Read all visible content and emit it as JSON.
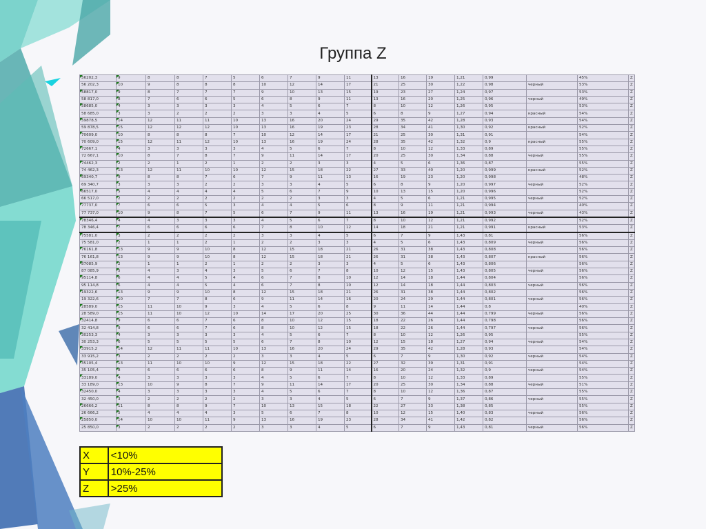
{
  "title": "Группа Z",
  "table": {
    "rows": [
      [
        "56202,3",
        "9",
        "8",
        "8",
        "7",
        "5",
        "6",
        "7",
        "9",
        "11",
        "13",
        "16",
        "19",
        "1,21",
        "0,99",
        "",
        "45%",
        "Z"
      ],
      [
        "56 202,3",
        "10",
        "9",
        "8",
        "8",
        "8",
        "10",
        "12",
        "14",
        "17",
        "21",
        "25",
        "30",
        "1,22",
        "0,98",
        "черный",
        "53%",
        "Z"
      ],
      [
        "58817,0",
        "9",
        "8",
        "7",
        "7",
        "7",
        "9",
        "10",
        "13",
        "15",
        "19",
        "23",
        "27",
        "1,24",
        "0,97",
        "",
        "53%",
        "Z"
      ],
      [
        "58 817,0",
        "8",
        "7",
        "6",
        "6",
        "5",
        "6",
        "8",
        "9",
        "11",
        "13",
        "16",
        "20",
        "1,25",
        "0,96",
        "черный",
        "49%",
        "Z"
      ],
      [
        "58685,0",
        "4",
        "3",
        "3",
        "3",
        "3",
        "4",
        "5",
        "6",
        "7",
        "8",
        "10",
        "12",
        "1,26",
        "0,95",
        "",
        "53%",
        "Z"
      ],
      [
        "58 685,0",
        "3",
        "3",
        "2",
        "2",
        "2",
        "3",
        "3",
        "4",
        "5",
        "6",
        "8",
        "9",
        "1,27",
        "0,94",
        "красный",
        "54%",
        "Z"
      ],
      [
        "59878,5",
        "14",
        "12",
        "11",
        "11",
        "10",
        "13",
        "16",
        "20",
        "24",
        "29",
        "35",
        "42",
        "1,28",
        "0,93",
        "",
        "54%",
        "Z"
      ],
      [
        "59 878,5",
        "15",
        "12",
        "12",
        "12",
        "10",
        "13",
        "16",
        "19",
        "23",
        "28",
        "34",
        "41",
        "1,30",
        "0,92",
        "красный",
        "52%",
        "Z"
      ],
      [
        "70609,0",
        "10",
        "8",
        "8",
        "8",
        "7",
        "10",
        "12",
        "14",
        "17",
        "21",
        "25",
        "30",
        "1,31",
        "0,91",
        "",
        "54%",
        "Z"
      ],
      [
        "70 609,0",
        "15",
        "12",
        "11",
        "12",
        "10",
        "13",
        "16",
        "19",
        "24",
        "28",
        "35",
        "42",
        "1,32",
        "0,9",
        "красный",
        "55%",
        "Z"
      ],
      [
        "72667,1",
        "4",
        "3",
        "3",
        "3",
        "3",
        "4",
        "5",
        "6",
        "7",
        "8",
        "10",
        "12",
        "1,33",
        "0,89",
        "",
        "55%",
        "Z"
      ],
      [
        "72 667,1",
        "10",
        "8",
        "7",
        "8",
        "7",
        "9",
        "11",
        "14",
        "17",
        "20",
        "25",
        "30",
        "1,34",
        "0,88",
        "черный",
        "55%",
        "Z"
      ],
      [
        "74462,3",
        "2",
        "2",
        "1",
        "2",
        "1",
        "2",
        "2",
        "3",
        "3",
        "4",
        "5",
        "6",
        "1,36",
        "0,87",
        "",
        "55%",
        "Z"
      ],
      [
        "74 462,3",
        "13",
        "12",
        "11",
        "10",
        "10",
        "12",
        "15",
        "18",
        "22",
        "27",
        "33",
        "40",
        "1,20",
        "0,999",
        "красный",
        "52%",
        "Z"
      ],
      [
        "69340,7",
        "9",
        "8",
        "8",
        "7",
        "6",
        "7",
        "9",
        "11",
        "13",
        "16",
        "19",
        "23",
        "1,20",
        "0,998",
        "",
        "48%",
        "Z"
      ],
      [
        "69 340,7",
        "3",
        "3",
        "3",
        "2",
        "2",
        "3",
        "3",
        "4",
        "5",
        "6",
        "8",
        "9",
        "1,20",
        "0,997",
        "черный",
        "52%",
        "Z"
      ],
      [
        "66517,0",
        "5",
        "4",
        "4",
        "4",
        "4",
        "5",
        "6",
        "7",
        "9",
        "10",
        "13",
        "15",
        "1,20",
        "0,996",
        "",
        "52%",
        "Z"
      ],
      [
        "66 517,0",
        "2",
        "2",
        "2",
        "2",
        "2",
        "2",
        "2",
        "3",
        "3",
        "4",
        "5",
        "6",
        "1,21",
        "0,995",
        "черный",
        "52%",
        "Z"
      ],
      [
        "77737,0",
        "7",
        "6",
        "6",
        "5",
        "3",
        "4",
        "4",
        "5",
        "6",
        "8",
        "9",
        "11",
        "1,21",
        "0,994",
        "",
        "40%",
        "Z"
      ],
      [
        "77 737,0",
        "10",
        "9",
        "8",
        "7",
        "5",
        "6",
        "7",
        "9",
        "11",
        "13",
        "16",
        "19",
        "1,21",
        "0,993",
        "черный",
        "43%",
        "Z"
      ],
      [
        "78346,4",
        "4",
        "4",
        "3",
        "3",
        "3",
        "4",
        "5",
        "6",
        "7",
        "8",
        "10",
        "12",
        "1,21",
        "0,992",
        "",
        "52%",
        "Z"
      ],
      [
        "78 346,4",
        "7",
        "6",
        "6",
        "6",
        "6",
        "7",
        "8",
        "10",
        "12",
        "14",
        "18",
        "21",
        "1,21",
        "0,991",
        "красный",
        "53%",
        "Z"
      ],
      [
        "75581,0",
        "3",
        "2",
        "2",
        "2",
        "2",
        "3",
        "3",
        "4",
        "5",
        "6",
        "7",
        "9",
        "1,43",
        "0,81",
        "",
        "56%",
        "Z"
      ],
      [
        "75 581,0",
        "2",
        "1",
        "1",
        "2",
        "1",
        "2",
        "2",
        "3",
        "3",
        "4",
        "5",
        "6",
        "1,43",
        "0,809",
        "черный",
        "56%",
        "Z"
      ],
      [
        "76161,8",
        "13",
        "9",
        "9",
        "10",
        "8",
        "12",
        "15",
        "18",
        "21",
        "26",
        "31",
        "38",
        "1,43",
        "0,808",
        "",
        "56%",
        "Z"
      ],
      [
        "76 161,8",
        "13",
        "9",
        "9",
        "10",
        "8",
        "12",
        "15",
        "18",
        "21",
        "26",
        "31",
        "38",
        "1,43",
        "0,807",
        "красный",
        "56%",
        "Z"
      ],
      [
        "87085,9",
        "2",
        "1",
        "1",
        "2",
        "1",
        "2",
        "2",
        "3",
        "3",
        "4",
        "5",
        "6",
        "1,43",
        "0,806",
        "",
        "56%",
        "Z"
      ],
      [
        "87 085,9",
        "5",
        "4",
        "3",
        "4",
        "3",
        "5",
        "6",
        "7",
        "8",
        "10",
        "12",
        "15",
        "1,43",
        "0,805",
        "черный",
        "56%",
        "Z"
      ],
      [
        "95114,8",
        "6",
        "4",
        "4",
        "5",
        "4",
        "6",
        "7",
        "8",
        "10",
        "12",
        "14",
        "18",
        "1,44",
        "0,804",
        "",
        "56%",
        "Z"
      ],
      [
        "95 114,8",
        "6",
        "4",
        "4",
        "5",
        "4",
        "6",
        "7",
        "8",
        "10",
        "12",
        "14",
        "18",
        "1,44",
        "0,803",
        "черный",
        "56%",
        "Z"
      ],
      [
        "19322,6",
        "13",
        "9",
        "9",
        "10",
        "8",
        "12",
        "15",
        "18",
        "21",
        "26",
        "31",
        "38",
        "1,44",
        "0,802",
        "",
        "56%",
        "Z"
      ],
      [
        "19 322,6",
        "10",
        "7",
        "7",
        "8",
        "6",
        "9",
        "11",
        "14",
        "16",
        "20",
        "24",
        "29",
        "1,44",
        "0,801",
        "черный",
        "56%",
        "Z"
      ],
      [
        "28589,0",
        "15",
        "11",
        "10",
        "9",
        "3",
        "4",
        "5",
        "6",
        "8",
        "9",
        "11",
        "14",
        "1,44",
        "0,8",
        "",
        "40%",
        "Z"
      ],
      [
        "28 589,0",
        "15",
        "11",
        "10",
        "12",
        "10",
        "14",
        "17",
        "20",
        "25",
        "30",
        "36",
        "44",
        "1,44",
        "0,799",
        "черный",
        "56%",
        "Z"
      ],
      [
        "32414,8",
        "9",
        "6",
        "6",
        "7",
        "6",
        "8",
        "10",
        "12",
        "15",
        "18",
        "22",
        "26",
        "1,44",
        "0,798",
        "",
        "56%",
        "Z"
      ],
      [
        "32 414,8",
        "9",
        "6",
        "6",
        "7",
        "6",
        "8",
        "10",
        "12",
        "15",
        "18",
        "22",
        "26",
        "1,44",
        "0,797",
        "черный",
        "56%",
        "Z"
      ],
      [
        "30253,3",
        "4",
        "3",
        "3",
        "3",
        "3",
        "4",
        "5",
        "6",
        "7",
        "8",
        "10",
        "12",
        "1,26",
        "0,95",
        "",
        "55%",
        "Z"
      ],
      [
        "30 253,3",
        "6",
        "5",
        "5",
        "5",
        "5",
        "6",
        "7",
        "8",
        "10",
        "12",
        "15",
        "18",
        "1,27",
        "0,94",
        "черный",
        "54%",
        "Z"
      ],
      [
        "33915,2",
        "14",
        "12",
        "11",
        "11",
        "10",
        "13",
        "16",
        "20",
        "24",
        "29",
        "35",
        "42",
        "1,28",
        "0,93",
        "",
        "54%",
        "Z"
      ],
      [
        "33 915,2",
        "3",
        "2",
        "2",
        "2",
        "2",
        "3",
        "3",
        "4",
        "5",
        "6",
        "7",
        "9",
        "1,30",
        "0,92",
        "черный",
        "54%",
        "Z"
      ],
      [
        "35105,4",
        "13",
        "11",
        "10",
        "10",
        "9",
        "12",
        "15",
        "18",
        "22",
        "27",
        "32",
        "39",
        "1,31",
        "0,91",
        "",
        "54%",
        "Z"
      ],
      [
        "35 105,4",
        "8",
        "6",
        "6",
        "6",
        "6",
        "8",
        "9",
        "11",
        "14",
        "16",
        "20",
        "24",
        "1,32",
        "0,9",
        "черный",
        "54%",
        "Z"
      ],
      [
        "33189,0",
        "4",
        "3",
        "3",
        "3",
        "3",
        "4",
        "5",
        "6",
        "7",
        "8",
        "10",
        "12",
        "1,33",
        "0,89",
        "",
        "55%",
        "Z"
      ],
      [
        "33 189,0",
        "13",
        "10",
        "9",
        "8",
        "7",
        "9",
        "11",
        "14",
        "17",
        "20",
        "25",
        "30",
        "1,34",
        "0,88",
        "черный",
        "51%",
        "Z"
      ],
      [
        "32450,0",
        "4",
        "3",
        "3",
        "3",
        "3",
        "4",
        "5",
        "6",
        "7",
        "8",
        "10",
        "12",
        "1,36",
        "0,87",
        "",
        "55%",
        "Z"
      ],
      [
        "32 450,0",
        "3",
        "2",
        "2",
        "2",
        "2",
        "3",
        "3",
        "4",
        "5",
        "6",
        "7",
        "9",
        "1,37",
        "0,86",
        "черный",
        "55%",
        "Z"
      ],
      [
        "26666,2",
        "11",
        "8",
        "8",
        "9",
        "7",
        "10",
        "13",
        "15",
        "18",
        "22",
        "27",
        "33",
        "1,38",
        "0,85",
        "",
        "55%",
        "Z"
      ],
      [
        "26 666,2",
        "5",
        "4",
        "4",
        "4",
        "3",
        "5",
        "6",
        "7",
        "8",
        "10",
        "12",
        "15",
        "1,40",
        "0,83",
        "черный",
        "56%",
        "Z"
      ],
      [
        "25850,0",
        "14",
        "10",
        "10",
        "11",
        "9",
        "13",
        "16",
        "19",
        "23",
        "28",
        "34",
        "41",
        "1,42",
        "0,82",
        "",
        "56%",
        "Z"
      ],
      [
        "25 850,0",
        "3",
        "2",
        "2",
        "2",
        "2",
        "3",
        "3",
        "4",
        "5",
        "6",
        "7",
        "9",
        "1,43",
        "0,81",
        "черный",
        "56%",
        "Z"
      ]
    ]
  },
  "legend": [
    {
      "group": "X",
      "range": "<10%"
    },
    {
      "group": "Y",
      "range": "10%-25%"
    },
    {
      "group": "Z",
      "range": ">25%"
    }
  ],
  "colors": {
    "accent_teal": "#4fd1c5",
    "accent_blue": "#3f6fb0",
    "legend_bg": "#ffff00",
    "cell_bg": "#e2e0ec",
    "marker_green": "#1a7a1a"
  }
}
